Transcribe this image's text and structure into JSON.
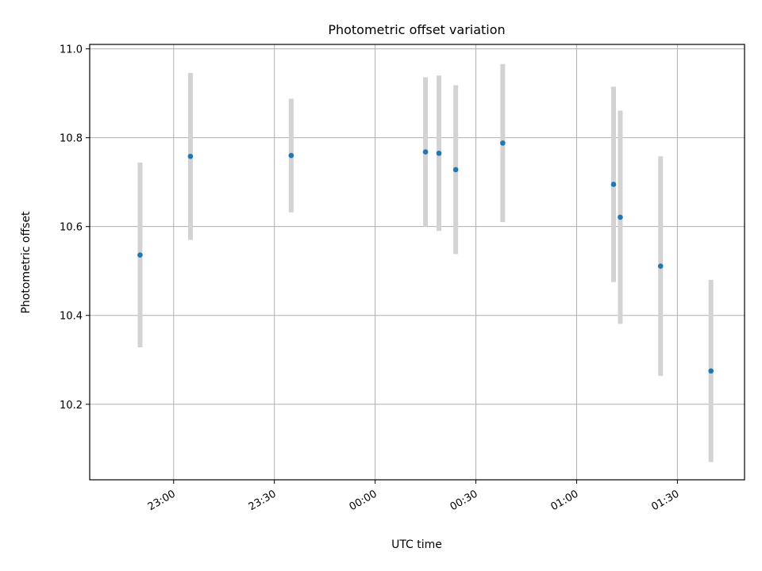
{
  "chart_data": {
    "type": "scatter",
    "title": "Photometric offset variation",
    "xlabel": "UTC time",
    "ylabel": "Photometric offset",
    "x_axis_kind": "time",
    "xlim": [
      "22:35",
      "01:50"
    ],
    "ylim": [
      10.03,
      11.01
    ],
    "x_ticks": [
      "23:00",
      "23:30",
      "00:00",
      "00:30",
      "01:00",
      "01:30"
    ],
    "y_ticks": [
      10.2,
      10.4,
      10.6,
      10.8,
      11.0
    ],
    "grid": true,
    "point_color": "#1f77b4",
    "errorbar_color": "#d3d3d3",
    "series": [
      {
        "points": [
          {
            "x": "22:50",
            "y": 10.536,
            "err": 0.208
          },
          {
            "x": "23:05",
            "y": 10.758,
            "err": 0.188
          },
          {
            "x": "23:35",
            "y": 10.76,
            "err": 0.128
          },
          {
            "x": "00:15",
            "y": 10.768,
            "err": 0.168
          },
          {
            "x": "00:19",
            "y": 10.765,
            "err": 0.175
          },
          {
            "x": "00:24",
            "y": 10.728,
            "err": 0.19
          },
          {
            "x": "00:38",
            "y": 10.788,
            "err": 0.178
          },
          {
            "x": "01:11",
            "y": 10.695,
            "err": 0.22
          },
          {
            "x": "01:13",
            "y": 10.621,
            "err": 0.24
          },
          {
            "x": "01:25",
            "y": 10.511,
            "err": 0.247
          },
          {
            "x": "01:40",
            "y": 10.275,
            "err": 0.205
          }
        ]
      }
    ]
  }
}
